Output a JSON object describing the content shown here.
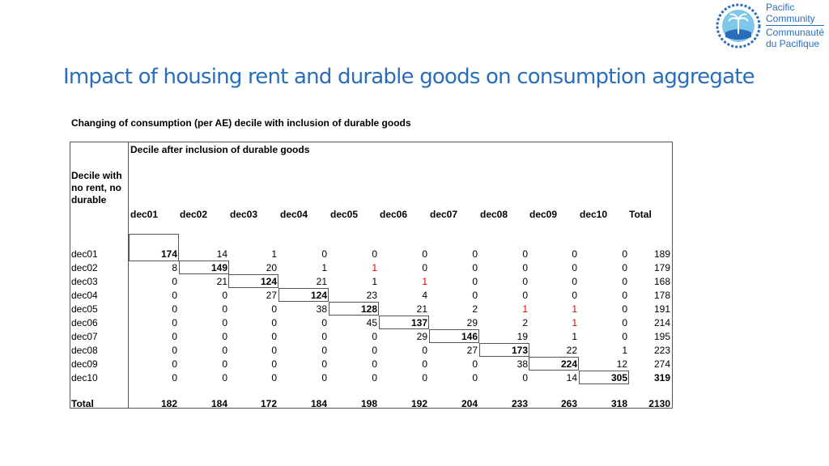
{
  "page": {
    "title": "Impact of housing rent and durable goods on consumption aggregate",
    "subtitle": "Changing of consumption (per AE) decile with inclusion of durable goods"
  },
  "logo": {
    "line1": "Pacific",
    "line2": "Community",
    "line3": "Communauté",
    "line4": "du Pacifique",
    "accent": "#2a6ebb"
  },
  "table": {
    "column_group_label": "Decile after inclusion of durable goods",
    "row_group_label": "Decile with no rent, no durable",
    "columns": [
      "dec01",
      "dec02",
      "dec03",
      "dec04",
      "dec05",
      "dec06",
      "dec07",
      "dec08",
      "dec09",
      "dec10",
      "Total"
    ],
    "rows": [
      {
        "label": "dec01",
        "values": [
          "174",
          "14",
          "1",
          "0",
          "0",
          "0",
          "0",
          "0",
          "0",
          "0",
          "189"
        ]
      },
      {
        "label": "dec02",
        "values": [
          "8",
          "149",
          "20",
          "1",
          "1",
          "0",
          "0",
          "0",
          "0",
          "0",
          "179"
        ]
      },
      {
        "label": "dec03",
        "values": [
          "0",
          "21",
          "124",
          "21",
          "1",
          "1",
          "0",
          "0",
          "0",
          "0",
          "168"
        ]
      },
      {
        "label": "dec04",
        "values": [
          "0",
          "0",
          "27",
          "124",
          "23",
          "4",
          "0",
          "0",
          "0",
          "0",
          "178"
        ]
      },
      {
        "label": "dec05",
        "values": [
          "0",
          "0",
          "0",
          "38",
          "128",
          "21",
          "2",
          "1",
          "1",
          "0",
          "191"
        ]
      },
      {
        "label": "dec06",
        "values": [
          "0",
          "0",
          "0",
          "0",
          "45",
          "137",
          "29",
          "2",
          "1",
          "0",
          "214"
        ]
      },
      {
        "label": "dec07",
        "values": [
          "0",
          "0",
          "0",
          "0",
          "0",
          "29",
          "146",
          "19",
          "1",
          "0",
          "195"
        ]
      },
      {
        "label": "dec08",
        "values": [
          "0",
          "0",
          "0",
          "0",
          "0",
          "0",
          "27",
          "173",
          "22",
          "1",
          "223"
        ]
      },
      {
        "label": "dec09",
        "values": [
          "0",
          "0",
          "0",
          "0",
          "0",
          "0",
          "0",
          "38",
          "224",
          "12",
          "274"
        ]
      },
      {
        "label": "dec10",
        "values": [
          "0",
          "0",
          "0",
          "0",
          "0",
          "0",
          "0",
          "0",
          "14",
          "305",
          "319"
        ]
      }
    ],
    "total_row": {
      "label": "Total",
      "values": [
        "182",
        "184",
        "172",
        "184",
        "198",
        "192",
        "204",
        "233",
        "263",
        "318",
        "2130"
      ]
    },
    "highlight_color": "#e00000"
  }
}
